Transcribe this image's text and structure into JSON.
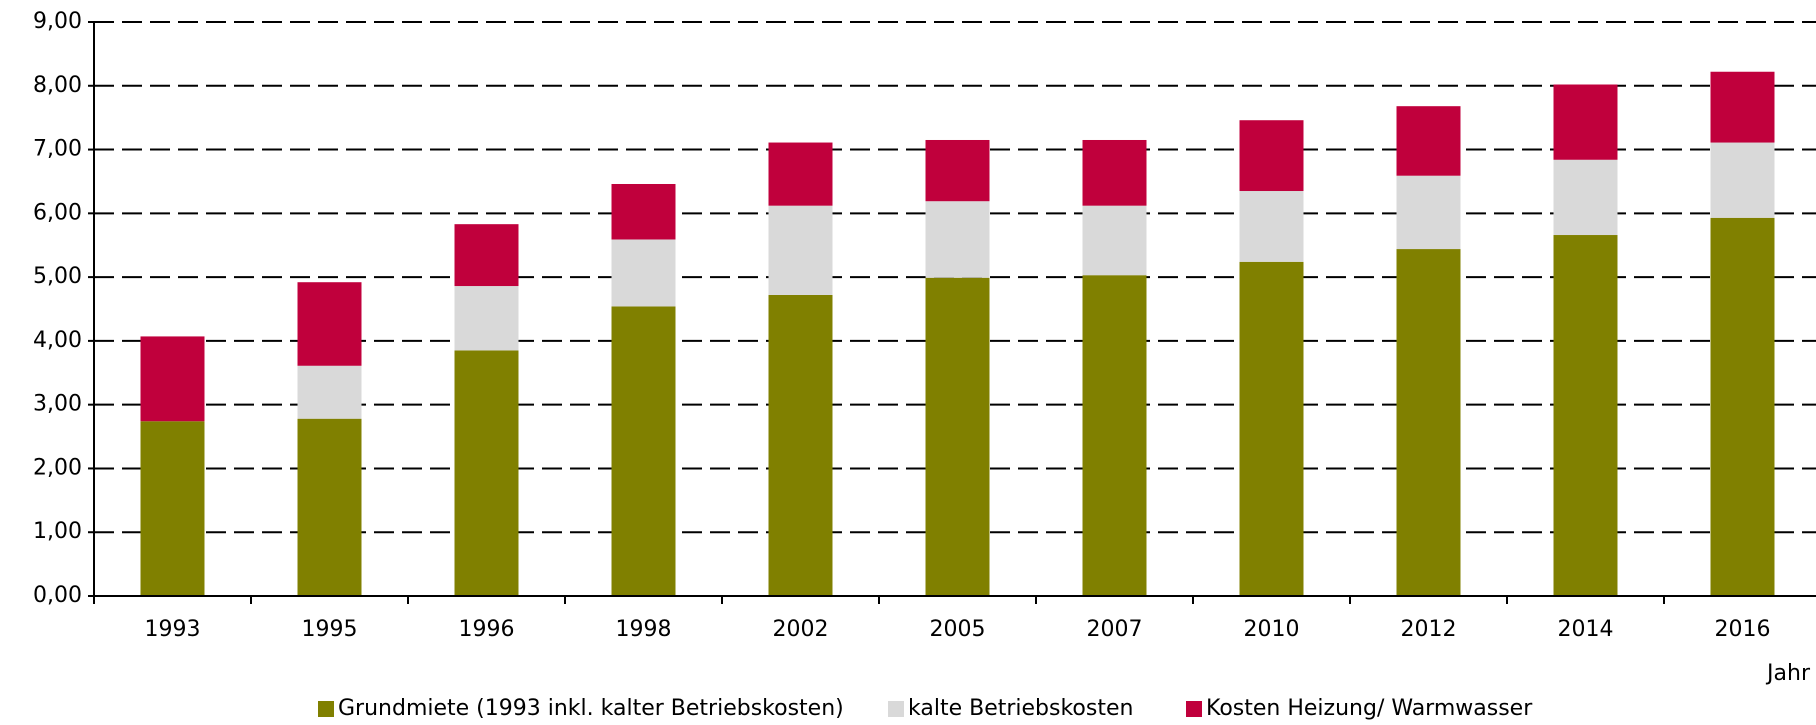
{
  "chart_data": {
    "type": "stacked_bar",
    "categories": [
      "1993",
      "1995",
      "1996",
      "1998",
      "2002",
      "2005",
      "2007",
      "2010",
      "2012",
      "2014",
      "2016"
    ],
    "series": [
      {
        "name": "Grundmiete (1993 inkl. kalter Betriebskosten)",
        "color": "#808000",
        "values": [
          2.74,
          2.78,
          3.85,
          4.54,
          4.72,
          4.99,
          5.03,
          5.24,
          5.44,
          5.66,
          5.93
        ]
      },
      {
        "name": "kalte Betriebskosten",
        "color": "#d9d9d9",
        "values": [
          0,
          0.83,
          1.01,
          1.05,
          1.4,
          1.2,
          1.09,
          1.11,
          1.15,
          1.18,
          1.18
        ]
      },
      {
        "name": "Kosten Heizung/ Warmwasser",
        "color": "#c0003c",
        "values": [
          1.33,
          1.31,
          0.97,
          0.87,
          0.99,
          0.96,
          1.03,
          1.11,
          1.09,
          1.18,
          1.11
        ]
      }
    ],
    "x_label": "Jahr",
    "ylim": [
      0,
      9
    ],
    "yticks": [
      {
        "value": 0,
        "label": "0,00"
      },
      {
        "value": 1,
        "label": "1,00"
      },
      {
        "value": 2,
        "label": "2,00"
      },
      {
        "value": 3,
        "label": "3,00"
      },
      {
        "value": 4,
        "label": "4,00"
      },
      {
        "value": 5,
        "label": "5,00"
      },
      {
        "value": 6,
        "label": "6,00"
      },
      {
        "value": 7,
        "label": "7,00"
      },
      {
        "value": 8,
        "label": "8,00"
      },
      {
        "value": 9,
        "label": "9,00"
      }
    ],
    "grid": true,
    "legend": "bottom"
  }
}
